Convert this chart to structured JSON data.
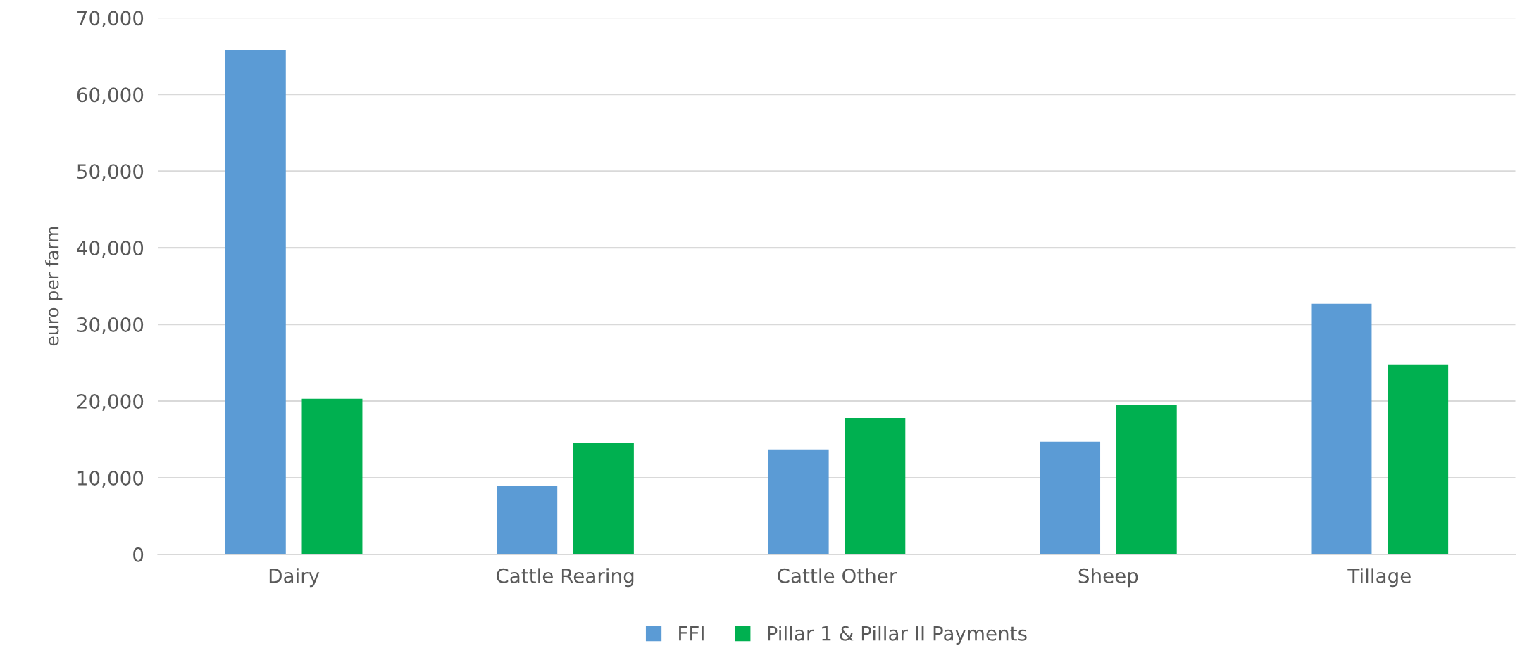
{
  "chart_data": {
    "type": "bar",
    "ylabel": "euro per farm",
    "categories": [
      "Dairy",
      "Cattle Rearing",
      "Cattle Other",
      "Sheep",
      "Tillage"
    ],
    "series": [
      {
        "name": "FFI",
        "color": "#5b9bd5",
        "values": [
          65800,
          8900,
          13700,
          14700,
          32700
        ]
      },
      {
        "name": "Pillar 1 & Pillar II Payments",
        "color": "#00b050",
        "values": [
          20300,
          14500,
          17800,
          19500,
          24700
        ]
      }
    ],
    "ylim": [
      0,
      70000
    ],
    "yticks": [
      {
        "value": 0,
        "label": "0"
      },
      {
        "value": 10000,
        "label": "10,000"
      },
      {
        "value": 20000,
        "label": "20,000"
      },
      {
        "value": 30000,
        "label": "30,000"
      },
      {
        "value": 40000,
        "label": "40,000"
      },
      {
        "value": 50000,
        "label": "50,000"
      },
      {
        "value": 60000,
        "label": "60,000"
      },
      {
        "value": 70000,
        "label": "70,000"
      }
    ],
    "grid": "y",
    "legend": "bottom"
  }
}
